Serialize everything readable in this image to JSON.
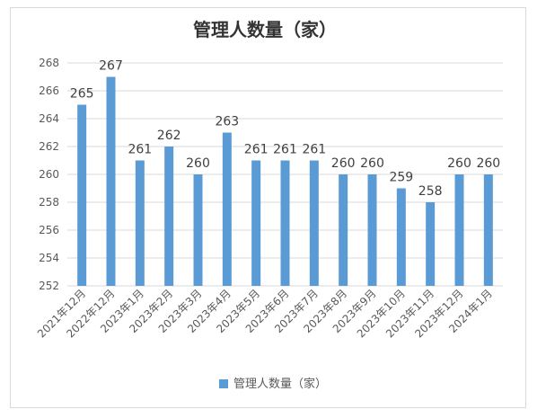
{
  "chart_data": {
    "type": "bar",
    "title": "管理人数量（家）",
    "categories": [
      "2021年12月",
      "2022年12月",
      "2023年1月",
      "2023年2月",
      "2023年3月",
      "2023年4月",
      "2023年5月",
      "2023年6月",
      "2023年7月",
      "2023年8月",
      "2023年9月",
      "2023年10月",
      "2023年11月",
      "2023年12月",
      "2024年1月"
    ],
    "series": [
      {
        "name": "管理人数量（家）",
        "values": [
          265,
          267,
          261,
          262,
          260,
          263,
          261,
          261,
          261,
          260,
          260,
          259,
          258,
          260,
          260
        ],
        "color": "#5b9bd5"
      }
    ],
    "ylim": [
      252,
      268
    ],
    "yticks": [
      252,
      254,
      256,
      258,
      260,
      262,
      264,
      266,
      268
    ],
    "grid": true,
    "legend_position": "bottom"
  }
}
